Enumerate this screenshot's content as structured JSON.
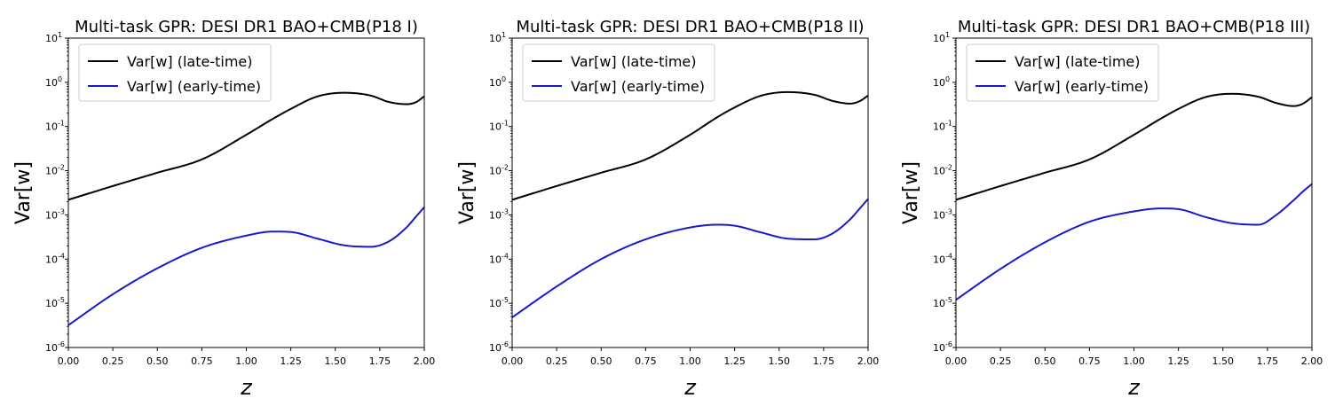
{
  "chart_data": [
    {
      "type": "line",
      "title": "Multi-task GPR: DESI DR1 BAO+CMB(P18 I)",
      "xlabel": "z",
      "ylabel": "Var[w]",
      "xlim": [
        0.0,
        2.0
      ],
      "ylim": [
        1e-06,
        10
      ],
      "yscale": "log",
      "grid": false,
      "legend_position": "upper left",
      "x_ticks": [
        "0.00",
        "0.25",
        "0.50",
        "0.75",
        "1.00",
        "1.25",
        "1.50",
        "1.75",
        "2.00"
      ],
      "y_tick_exponents": [
        "-6",
        "-5",
        "-4",
        "-3",
        "-2",
        "-1",
        "0",
        "1"
      ],
      "x": [
        0.0,
        0.25,
        0.5,
        0.75,
        1.0,
        1.15,
        1.25,
        1.4,
        1.55,
        1.7,
        1.8,
        1.9,
        1.95,
        2.0
      ],
      "series": [
        {
          "name": "Var[w] (late-time)",
          "color": "#000000",
          "values": [
            0.0022,
            0.0045,
            0.009,
            0.018,
            0.065,
            0.15,
            0.25,
            0.48,
            0.58,
            0.5,
            0.36,
            0.32,
            0.35,
            0.48
          ]
        },
        {
          "name": "Var[w] (early-time)",
          "color": "#1a1acc",
          "values": [
            3.2e-06,
            1.6e-05,
            6.2e-05,
            0.00018,
            0.00034,
            0.00042,
            0.00041,
            0.00029,
            0.000205,
            0.00019,
            0.00025,
            0.00052,
            0.00088,
            0.0015
          ]
        }
      ]
    },
    {
      "type": "line",
      "title": "Multi-task GPR: DESI DR1 BAO+CMB(P18 II)",
      "xlabel": "z",
      "ylabel": "Var[w]",
      "xlim": [
        0.0,
        2.0
      ],
      "ylim": [
        1e-06,
        10
      ],
      "yscale": "log",
      "grid": false,
      "legend_position": "upper left",
      "x_ticks": [
        "0.00",
        "0.25",
        "0.50",
        "0.75",
        "1.00",
        "1.25",
        "1.50",
        "1.75",
        "2.00"
      ],
      "y_tick_exponents": [
        "-6",
        "-5",
        "-4",
        "-3",
        "-2",
        "-1",
        "0",
        "1"
      ],
      "x": [
        0.0,
        0.25,
        0.5,
        0.75,
        1.0,
        1.15,
        1.25,
        1.4,
        1.55,
        1.7,
        1.8,
        1.9,
        1.95,
        2.0
      ],
      "series": [
        {
          "name": "Var[w] (late-time)",
          "color": "#000000",
          "values": [
            0.0022,
            0.0045,
            0.009,
            0.018,
            0.065,
            0.16,
            0.27,
            0.5,
            0.6,
            0.52,
            0.38,
            0.33,
            0.37,
            0.5
          ]
        },
        {
          "name": "Var[w] (early-time)",
          "color": "#1a1acc",
          "values": [
            4.8e-06,
            2.4e-05,
            0.0001,
            0.00028,
            0.00052,
            0.0006,
            0.00057,
            0.0004,
            0.00029,
            0.00028,
            0.00038,
            0.0008,
            0.00135,
            0.0023
          ]
        }
      ]
    },
    {
      "type": "line",
      "title": "Multi-task GPR: DESI DR1 BAO+CMB(P18 III)",
      "xlabel": "z",
      "ylabel": "Var[w]",
      "xlim": [
        0.0,
        2.0
      ],
      "ylim": [
        1e-06,
        10
      ],
      "yscale": "log",
      "grid": false,
      "legend_position": "upper left",
      "x_ticks": [
        "0.00",
        "0.25",
        "0.50",
        "0.75",
        "1.00",
        "1.25",
        "1.50",
        "1.75",
        "2.00"
      ],
      "y_tick_exponents": [
        "-6",
        "-5",
        "-4",
        "-3",
        "-2",
        "-1",
        "0",
        "1"
      ],
      "x": [
        0.0,
        0.25,
        0.5,
        0.75,
        1.0,
        1.15,
        1.25,
        1.4,
        1.55,
        1.7,
        1.8,
        1.9,
        1.95,
        2.0
      ],
      "series": [
        {
          "name": "Var[w] (late-time)",
          "color": "#000000",
          "values": [
            0.0022,
            0.0045,
            0.009,
            0.018,
            0.065,
            0.15,
            0.25,
            0.46,
            0.55,
            0.47,
            0.34,
            0.29,
            0.33,
            0.46
          ]
        },
        {
          "name": "Var[w] (early-time)",
          "color": "#1a1acc",
          "values": [
            1.2e-05,
            6e-05,
            0.00024,
            0.0007,
            0.0012,
            0.0014,
            0.00135,
            0.0009,
            0.00065,
            0.0006,
            0.001,
            0.0022,
            0.0034,
            0.005
          ]
        }
      ]
    }
  ]
}
